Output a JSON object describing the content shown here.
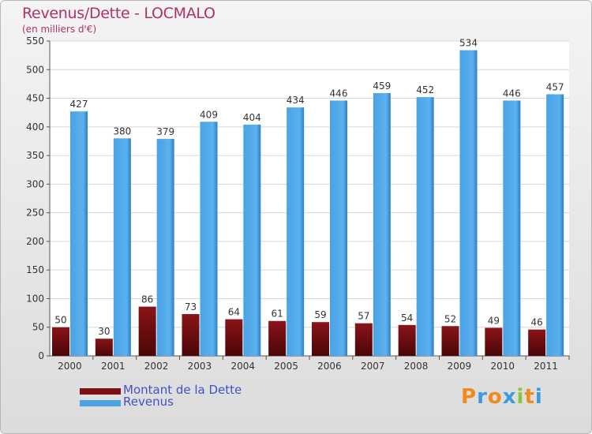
{
  "chart_data": {
    "type": "bar",
    "title": "Revenus/Dette - LOCMALO",
    "subtitle": "(en milliers d'€)",
    "categories": [
      "2000",
      "2001",
      "2002",
      "2003",
      "2004",
      "2005",
      "2006",
      "2007",
      "2008",
      "2009",
      "2010",
      "2011"
    ],
    "series": [
      {
        "name": "Montant de la Dette",
        "color": "#7a1014",
        "values": [
          50,
          30,
          86,
          73,
          64,
          61,
          59,
          57,
          54,
          52,
          49,
          46
        ]
      },
      {
        "name": "Revenus",
        "color": "#4aa3e4",
        "values": [
          427,
          380,
          379,
          409,
          404,
          434,
          446,
          459,
          452,
          534,
          446,
          457
        ]
      }
    ],
    "yticks": [
      0,
      50,
      100,
      150,
      200,
      250,
      300,
      350,
      400,
      450,
      500,
      550
    ],
    "ylim": [
      0,
      550
    ],
    "grid": true,
    "legend_position": "bottom-left",
    "data_labels": true
  },
  "branding": {
    "logo_letters": [
      "P",
      "r",
      "o",
      "x",
      "i",
      "t",
      "i"
    ],
    "logo_colors": [
      "#f08a1c",
      "#3a9be0",
      "#f08a1c",
      "#3a9be0",
      "#8bc540",
      "#f08a1c",
      "#3a9be0"
    ]
  }
}
